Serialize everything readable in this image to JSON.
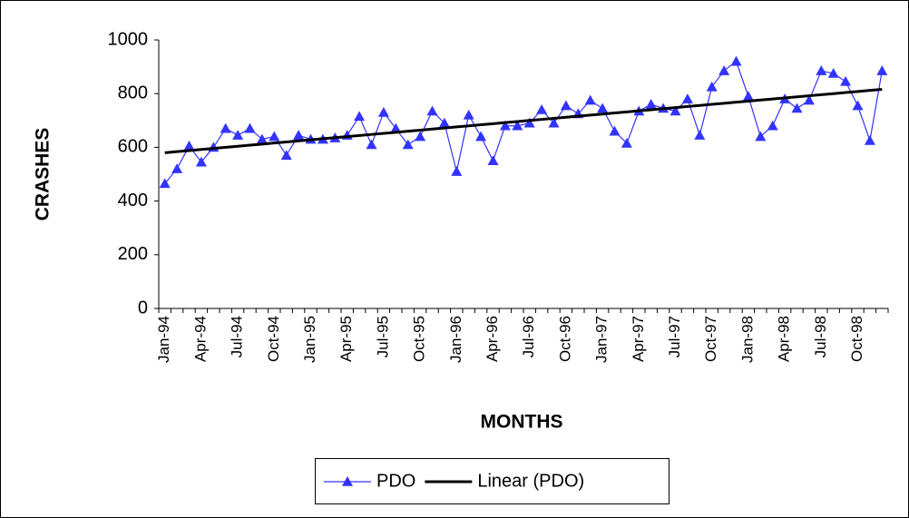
{
  "chart_data": {
    "type": "line",
    "x_label": "MONTHS",
    "y_label": "CRASHES",
    "categories": [
      "Jan-94",
      null,
      null,
      "Apr-94",
      null,
      null,
      "Jul-94",
      null,
      null,
      "Oct-94",
      null,
      null,
      "Jan-95",
      null,
      null,
      "Apr-95",
      null,
      null,
      "Jul-95",
      null,
      null,
      "Oct-95",
      null,
      null,
      "Jan-96",
      null,
      null,
      "Apr-96",
      null,
      null,
      "Jul-96",
      null,
      null,
      "Oct-96",
      null,
      null,
      "Jan-97",
      null,
      null,
      "Apr-97",
      null,
      null,
      "Jul-97",
      null,
      null,
      "Oct-97",
      null,
      null,
      "Jan-98",
      null,
      null,
      "Apr-98",
      null,
      null,
      "Jul-98",
      null,
      null,
      "Oct-98",
      null,
      null
    ],
    "series": [
      {
        "name": "PDO",
        "color": "#3333ff",
        "marker": "triangle",
        "values": [
          465,
          520,
          605,
          545,
          600,
          670,
          645,
          670,
          630,
          640,
          570,
          645,
          630,
          630,
          635,
          645,
          715,
          610,
          730,
          670,
          610,
          640,
          735,
          690,
          510,
          720,
          640,
          550,
          680,
          680,
          690,
          740,
          690,
          755,
          725,
          775,
          745,
          660,
          615,
          735,
          760,
          745,
          735,
          780,
          645,
          825,
          885,
          920,
          790,
          640,
          680,
          780,
          745,
          775,
          885,
          875,
          845,
          755,
          625,
          885
        ]
      },
      {
        "name": "Linear (PDO)",
        "color": "#000000",
        "marker": "none",
        "values": [
          580,
          584,
          588,
          592,
          596,
          600,
          604,
          608,
          612,
          616,
          620,
          624,
          628,
          632,
          636,
          640,
          644,
          648,
          652,
          656,
          660,
          664,
          668,
          672,
          676,
          680,
          684,
          688,
          692,
          696,
          700,
          704,
          708,
          712,
          716,
          720,
          724,
          728,
          732,
          736,
          740,
          744,
          748,
          752,
          756,
          760,
          764,
          768,
          772,
          776,
          780,
          784,
          788,
          792,
          796,
          800,
          804,
          808,
          812,
          816
        ]
      }
    ],
    "ylim": [
      0,
      1000
    ],
    "yticks": [
      0,
      200,
      400,
      600,
      800,
      1000
    ],
    "grid": false,
    "legend": "bottom"
  }
}
